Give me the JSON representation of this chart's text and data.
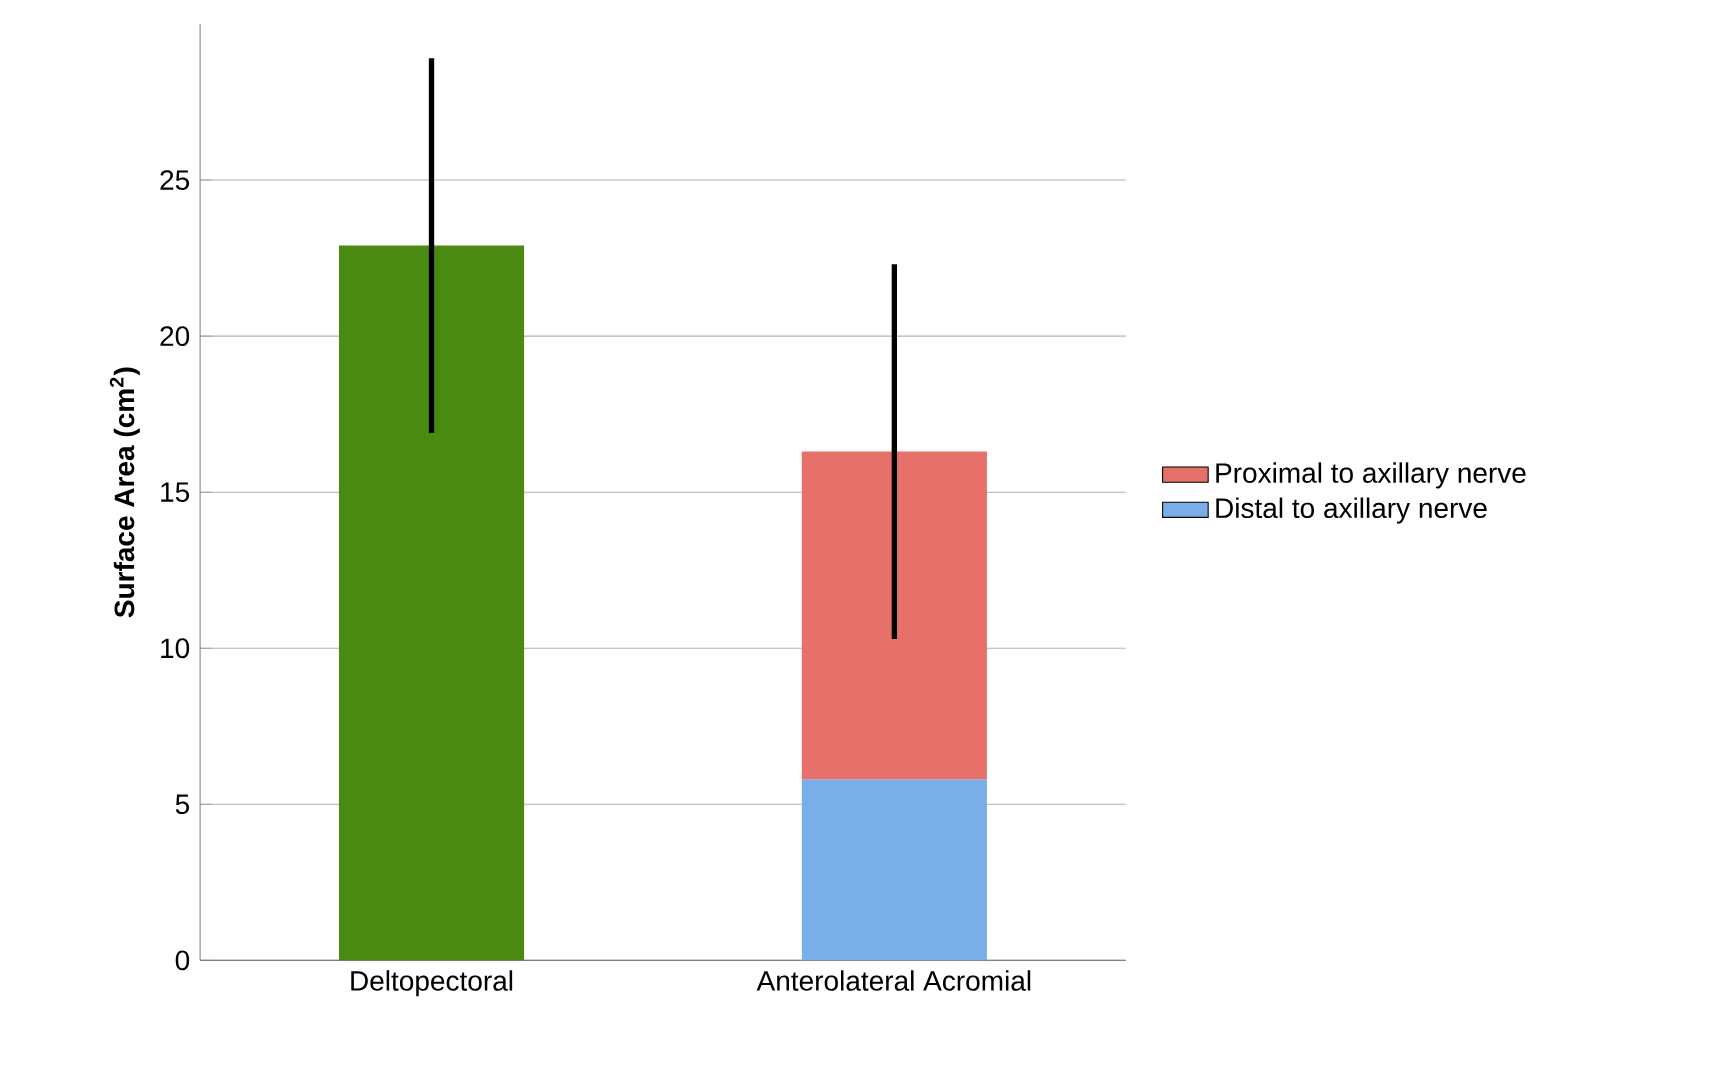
{
  "chart_data": {
    "type": "bar",
    "stacked": true,
    "ylabel": "Surface Area (cm$^{2}$)",
    "categories": [
      "Deltopectoral",
      "Anterolateral Acromial"
    ],
    "series": [
      {
        "color": "#4a8a10",
        "values": [
          22.9,
          null
        ],
        "errors": [
          6,
          null
        ]
      },
      {
        "name": "Distal to axillary nerve",
        "color": "#7aaee8",
        "values": [
          null,
          5.8
        ]
      },
      {
        "name": "Proximal to axillary nerve",
        "color": "#e8706a",
        "values": [
          null,
          10.5
        ],
        "errors": [
          null,
          6
        ]
      }
    ],
    "ylim": [
      0,
      30
    ],
    "yticks": [
      0,
      5,
      10,
      15,
      20,
      25
    ],
    "grid": "y",
    "legend": "right"
  }
}
